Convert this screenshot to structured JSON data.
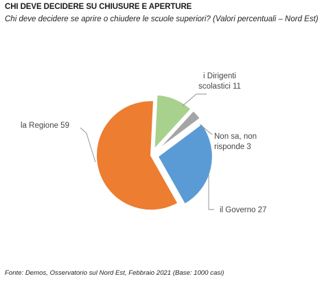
{
  "title": "CHI DEVE DECIDERE SU CHIUSURE E APERTURE",
  "subtitle": "Chi deve decidere se aprire o chiudere le scuole superiori? (Valori percentuali – Nord Est)",
  "source": "Fonte: Demos, Osservatorio sul Nord Est, Febbraio 2021 (Base: 1000 casi)",
  "chart_data": {
    "type": "pie",
    "slices": [
      {
        "label_lines": [
          "la Regione 59"
        ],
        "category": "la Regione",
        "value": 59,
        "color": "#ED7D31"
      },
      {
        "label_lines": [
          "i Dirigenti",
          "scolastici 11"
        ],
        "category": "i Dirigenti scolastici",
        "value": 11,
        "color": "#A9D18E"
      },
      {
        "label_lines": [
          "Non sa, non",
          "risponde 3"
        ],
        "category": "Non sa, non risponde",
        "value": 3,
        "color": "#A5A5A5"
      },
      {
        "label_lines": [
          "il Governo 27"
        ],
        "category": "il Governo",
        "value": 27,
        "color": "#5B9BD5"
      }
    ]
  }
}
